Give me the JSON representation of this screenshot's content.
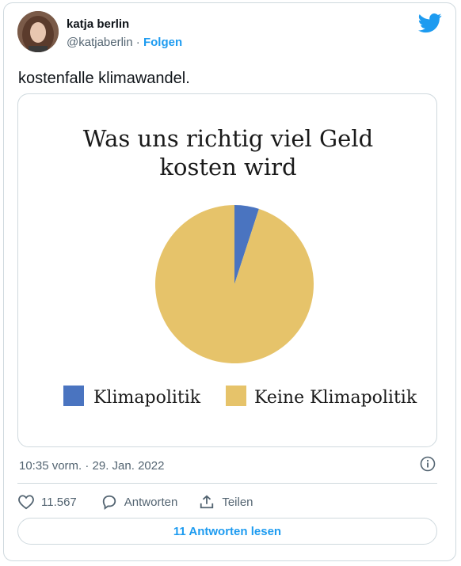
{
  "author": {
    "name": "katja berlin",
    "handle": "@katjaberlin",
    "separator": " · ",
    "follow_label": "Folgen"
  },
  "tweet": {
    "text": "kostenfalle klimawandel.",
    "timestamp": "10:35 vorm. · 29. Jan. 2022"
  },
  "chart_data": {
    "type": "pie",
    "title_line1": "Was uns richtig viel Geld",
    "title_line2": "kosten wird",
    "categories": [
      "Klimapolitik",
      "Keine Klimapolitik"
    ],
    "values": [
      5,
      95
    ],
    "colors": [
      "#4a74c0",
      "#e6c36a"
    ],
    "legend_position": "bottom"
  },
  "actions": {
    "likes_count": "11.567",
    "reply_label": "Antworten",
    "share_label": "Teilen"
  },
  "read_replies_label": "11 Antworten lesen",
  "colors": {
    "accent": "#1d9bf0",
    "border": "#cfd9de",
    "muted": "#536471"
  },
  "icons": [
    "twitter-bird-icon",
    "info-icon",
    "heart-icon",
    "reply-icon",
    "share-icon"
  ]
}
